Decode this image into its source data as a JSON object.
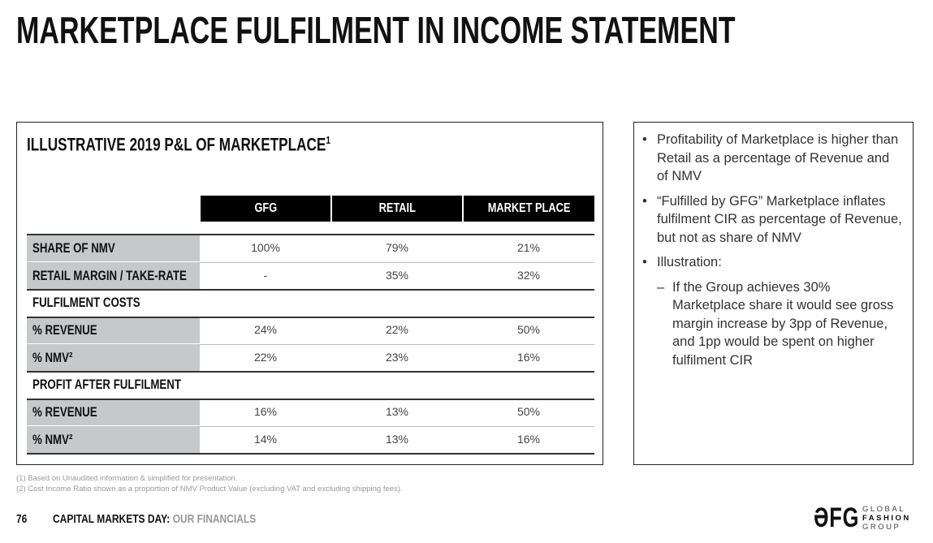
{
  "title": "MARKETPLACE FULFILMENT IN INCOME STATEMENT",
  "table": {
    "title": "ILLUSTRATIVE 2019 P&L OF MARKETPLACE",
    "title_sup": "1",
    "columns": [
      "GFG",
      "RETAIL",
      "MARKET PLACE"
    ],
    "rows": [
      {
        "label": "SHARE OF NMV",
        "values": [
          "100%",
          "79%",
          "21%"
        ]
      },
      {
        "label": "RETAIL MARGIN / TAKE-RATE",
        "values": [
          "-",
          "35%",
          "32%"
        ]
      },
      {
        "label": "FULFILMENT COSTS",
        "values": [
          "",
          "",
          ""
        ]
      },
      {
        "label": "% REVENUE",
        "values": [
          "24%",
          "22%",
          "50%"
        ]
      },
      {
        "label": "% NMV²",
        "values": [
          "22%",
          "23%",
          "16%"
        ]
      },
      {
        "label": "PROFIT AFTER FULFILMENT",
        "values": [
          "",
          "",
          ""
        ]
      },
      {
        "label": "% REVENUE",
        "values": [
          "16%",
          "13%",
          "50%"
        ]
      },
      {
        "label": "% NMV²",
        "values": [
          "14%",
          "13%",
          "16%"
        ]
      }
    ]
  },
  "bullets": [
    "Profitability of Marketplace is higher than Retail as a percentage of Revenue and of NMV",
    "“Fulfilled by GFG” Marketplace inflates fulfilment CIR as percentage of Revenue, but not as share of NMV",
    "Illustration:"
  ],
  "sub_bullet": "If the Group achieves 30% Marketplace share it would see gross margin increase by 3pp of Revenue, and 1pp would be spent on higher fulfilment CIR",
  "footnotes": [
    "(1)  Based on Unaudited information & simplified for presentation.",
    "(2)  Cost Income Ratio shown as a proportion of NMV Product Value (excluding VAT and excluding shipping fees)."
  ],
  "footer": {
    "page": "76",
    "event": "CAPITAL MARKETS DAY: ",
    "section": "OUR FINANCIALS"
  },
  "logo": {
    "mark": "ƏFG",
    "line1": "GLOBAL",
    "line2": "FASHION",
    "line3": "GROUP"
  }
}
